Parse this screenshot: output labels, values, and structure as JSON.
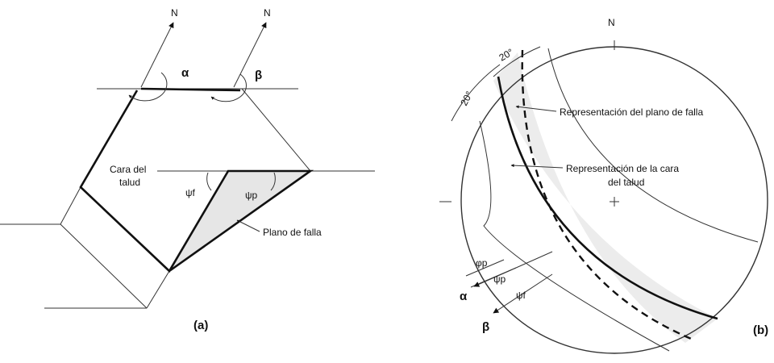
{
  "panel_a": {
    "north": [
      "N",
      "N"
    ],
    "alpha": "α",
    "beta": "β",
    "slope_face": [
      "Cara del",
      "talud"
    ],
    "psi_f": "ψf",
    "psi_p": "ψp",
    "failure_plane": "Plano de falla",
    "caption": "(a)"
  },
  "panel_b": {
    "north": "N",
    "angles": [
      "20°",
      "20°"
    ],
    "plane_label": "Representación del plano de falla",
    "face_label": [
      "Representación de la cara",
      "del talud"
    ],
    "phi_p": "φp",
    "psi_p": "ψp",
    "psi_f": "ψf",
    "alpha": "α",
    "beta": "β",
    "caption": "(b)"
  }
}
